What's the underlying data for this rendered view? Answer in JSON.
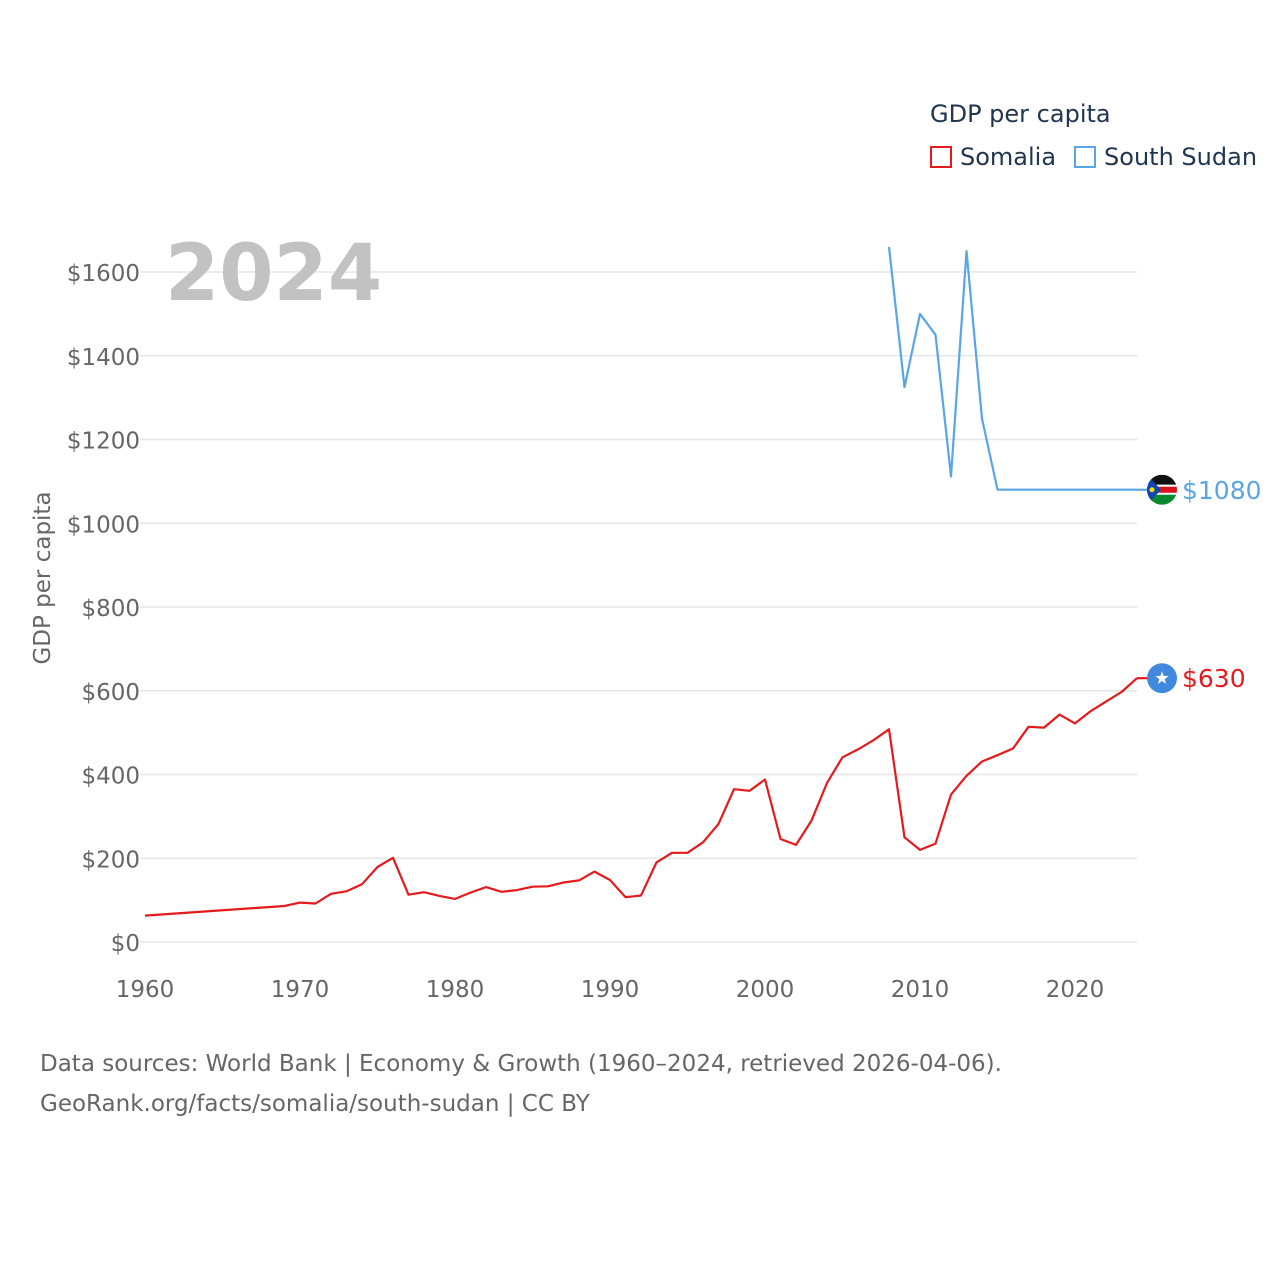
{
  "colors": {
    "somalia": "#e41a1c",
    "south_sudan": "#5aa5e6",
    "grid": "#e6e6e6",
    "tick": "#666666",
    "big_year": "#c2c2c2"
  },
  "chart_data": {
    "type": "line",
    "title": "GDP per capita",
    "year_label": "2024",
    "xlabel": "",
    "ylabel": "GDP per capita",
    "xlim": [
      1960,
      2024
    ],
    "ylim": [
      0,
      1600
    ],
    "x_ticks": [
      1960,
      1970,
      1980,
      1990,
      2000,
      2010,
      2020
    ],
    "y_ticks": [
      0,
      200,
      400,
      600,
      800,
      1000,
      1200,
      1400,
      1600
    ],
    "y_tick_labels": [
      "$0",
      "$200",
      "$400",
      "$600",
      "$800",
      "$1000",
      "$1200",
      "$1400",
      "$1600"
    ],
    "legend": [
      "Somalia",
      "South Sudan"
    ],
    "series": [
      {
        "name": "Somalia",
        "color": "#e41a1c",
        "end_label": "$630",
        "icon": "somalia-flag-icon",
        "x": [
          1960,
          1969,
          1970,
          1971,
          1972,
          1973,
          1974,
          1975,
          1976,
          1977,
          1978,
          1979,
          1980,
          1981,
          1982,
          1983,
          1984,
          1985,
          1986,
          1987,
          1988,
          1989,
          1990,
          1991,
          1992,
          1993,
          1994,
          1995,
          1996,
          1997,
          1998,
          1999,
          2000,
          2001,
          2002,
          2003,
          2004,
          2005,
          2006,
          2007,
          2008,
          2009,
          2010,
          2011,
          2012,
          2013,
          2014,
          2015,
          2016,
          2017,
          2018,
          2019,
          2020,
          2021,
          2022,
          2023,
          2024
        ],
        "values": [
          63,
          86,
          94,
          92,
          115,
          121,
          138,
          179,
          201,
          113,
          119,
          110,
          103,
          118,
          131,
          120,
          124,
          132,
          133,
          142,
          147,
          168,
          148,
          107,
          111,
          190,
          213,
          213,
          238,
          282,
          365,
          361,
          388,
          246,
          232,
          290,
          380,
          441,
          460,
          482,
          508,
          250,
          220,
          235,
          352,
          397,
          431,
          446,
          462,
          514,
          512,
          543,
          522,
          551,
          574,
          597,
          630
        ]
      },
      {
        "name": "South Sudan",
        "color": "#5aa5e6",
        "end_label": "$1080",
        "icon": "south-sudan-flag-icon",
        "x": [
          2008,
          2009,
          2010,
          2011,
          2012,
          2013,
          2014,
          2015,
          2024
        ],
        "values": [
          1660,
          1325,
          1500,
          1450,
          1112,
          1650,
          1250,
          1080,
          1080
        ]
      }
    ]
  },
  "footer": {
    "line1": "Data sources: World Bank | Economy & Growth (1960–2024, retrieved 2026-04-06).",
    "line2": "GeoRank.org/facts/somalia/south-sudan | CC BY"
  }
}
